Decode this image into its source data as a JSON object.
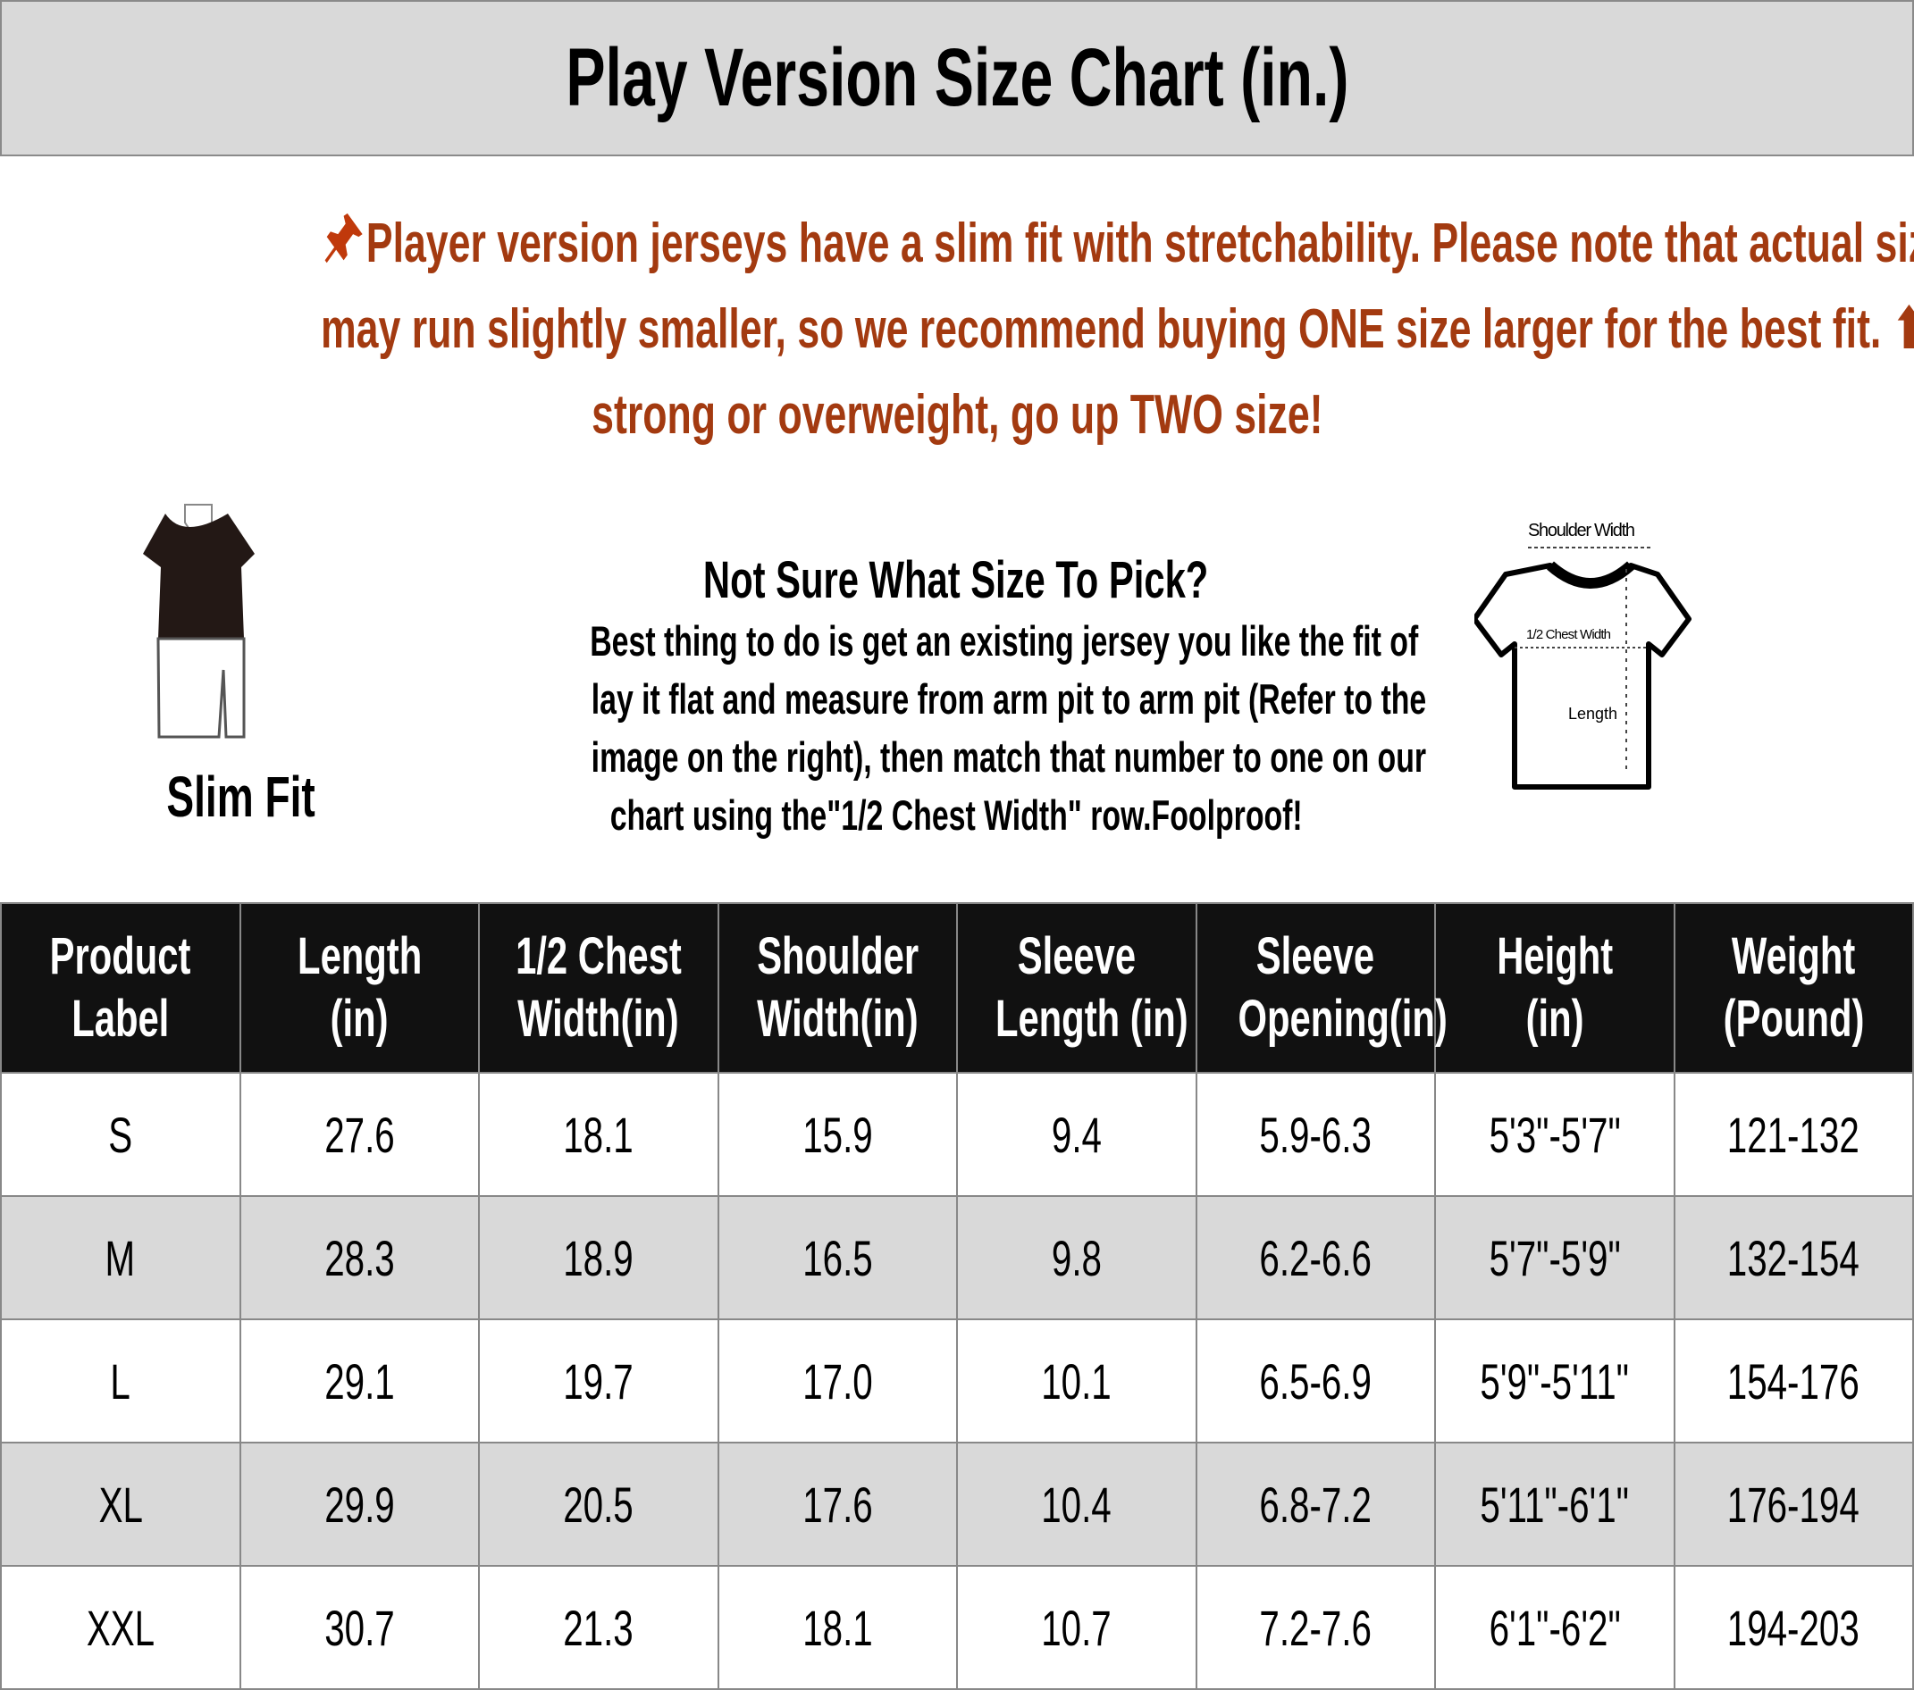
{
  "title": "Play Version Size Chart (in.)",
  "notice": {
    "icon": "pushpin-icon",
    "color": "#a33a10",
    "lines": [
      "Player version jerseys have a slim fit with stretchability. Please note that actual sizes",
      "may run slightly smaller, so we recommend buying ONE size larger for the best fit. ⬆ ⬆",
      "strong or overweight, go up TWO size!"
    ]
  },
  "fit": {
    "label": "Slim Fit"
  },
  "advice": {
    "heading": "Not Sure What Size To Pick?",
    "lines": [
      "Best thing to do is get an existing jersey you like the fit of",
      "lay it flat and measure from arm pit to arm pit (Refer to the",
      "image on the right), then match that number to one on our",
      "chart using the\"1/2 Chest Width\" row.Foolproof!"
    ]
  },
  "diagram": {
    "shoulder": "Shoulder Width",
    "chest": "1/2 Chest Width",
    "length": "Length"
  },
  "table": {
    "headers": [
      [
        "Product",
        "Label"
      ],
      [
        "Length",
        "(in)"
      ],
      [
        "1/2 Chest",
        "Width(in)"
      ],
      [
        "Shoulder",
        "Width(in)"
      ],
      [
        "Sleeve",
        "Length (in)"
      ],
      [
        "Sleeve",
        "Opening(in)"
      ],
      [
        "Height",
        "(in)"
      ],
      [
        "Weight",
        "(Pound)"
      ]
    ],
    "rows": [
      [
        "S",
        "27.6",
        "18.1",
        "15.9",
        "9.4",
        "5.9-6.3",
        "5'3\"-5'7\"",
        "121-132"
      ],
      [
        "M",
        "28.3",
        "18.9",
        "16.5",
        "9.8",
        "6.2-6.6",
        "5'7\"-5'9\"",
        "132-154"
      ],
      [
        "L",
        "29.1",
        "19.7",
        "17.0",
        "10.1",
        "6.5-6.9",
        "5'9\"-5'11\"",
        "154-176"
      ],
      [
        "XL",
        "29.9",
        "20.5",
        "17.6",
        "10.4",
        "6.8-7.2",
        "5'11\"-6'1\"",
        "176-194"
      ],
      [
        "XXL",
        "30.7",
        "21.3",
        "18.1",
        "10.7",
        "7.2-7.6",
        "6'1\"-6'2\"",
        "194-203"
      ]
    ]
  }
}
